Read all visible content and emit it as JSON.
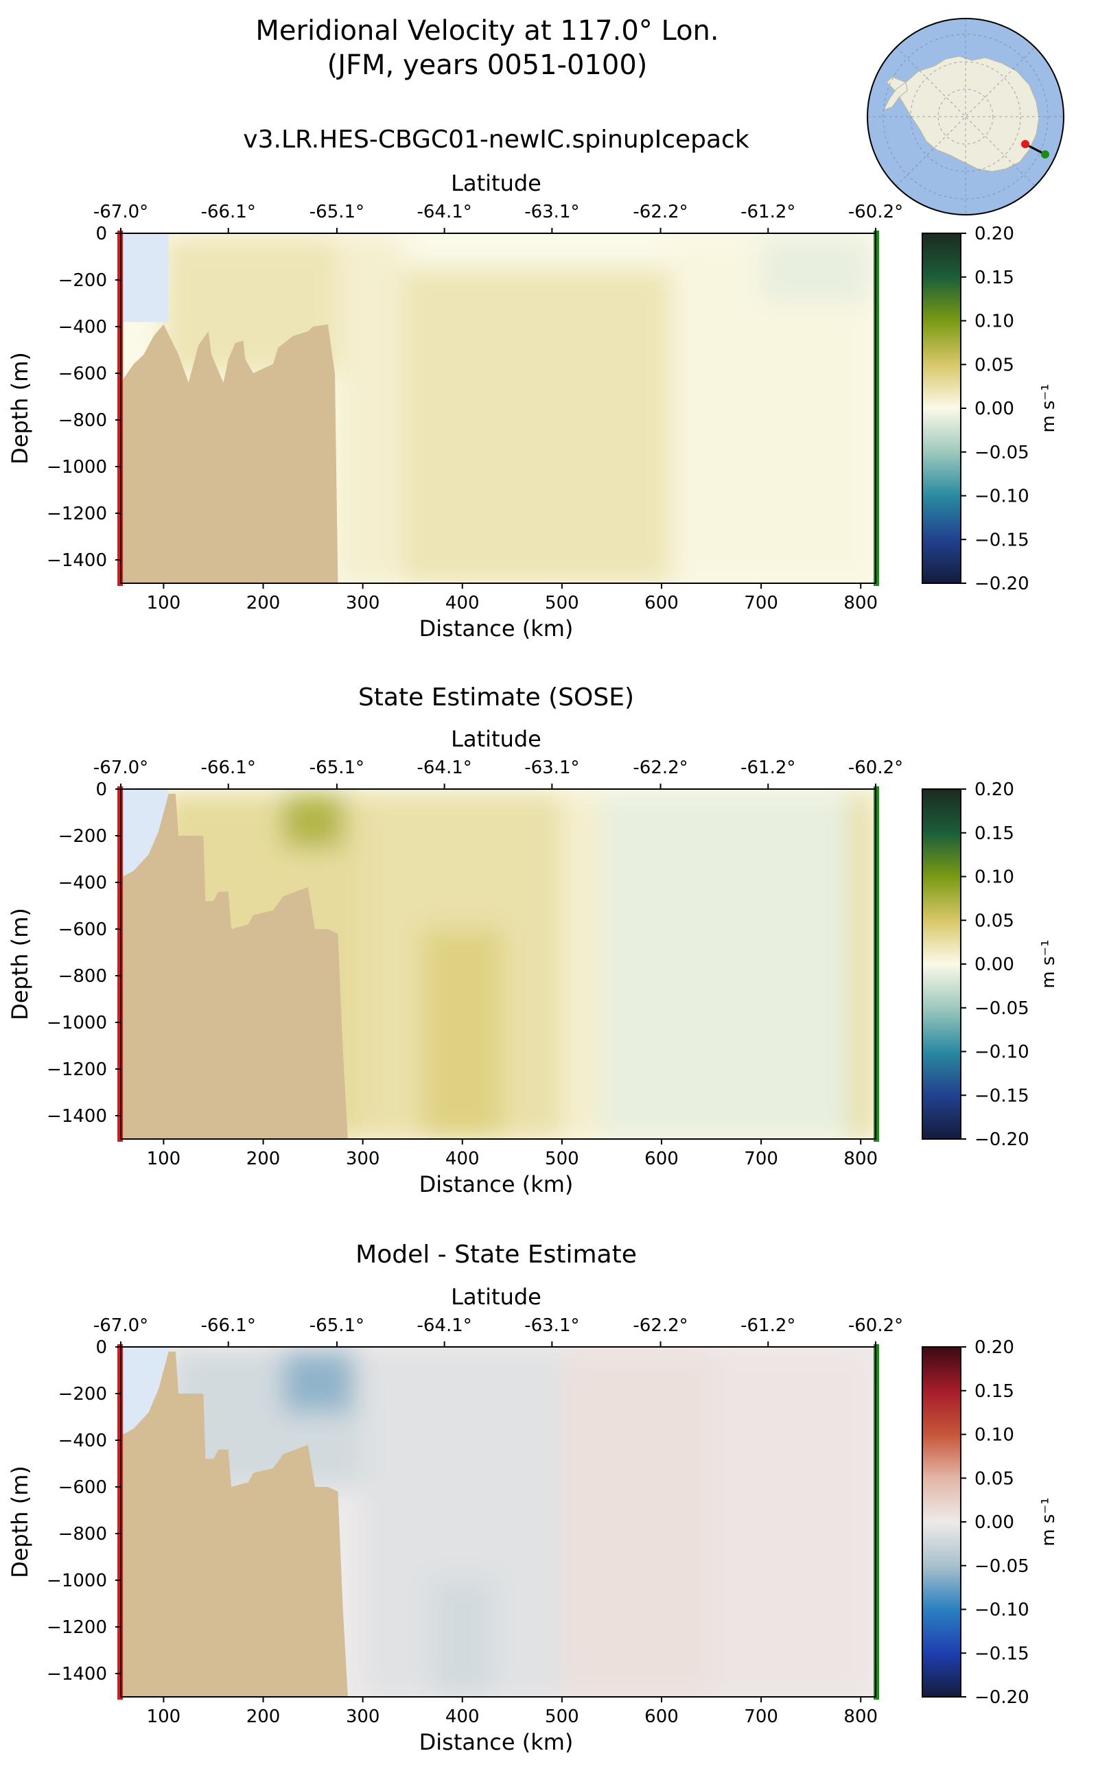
{
  "figure": {
    "title_line1": "Meridional Velocity at 117.0° Lon.",
    "title_line2": "(JFM, years 0051-0100)"
  },
  "chart_data": [
    {
      "type": "heatmap",
      "title": "v3.LR.HES-CBGC01-newIC.spinupIcepack",
      "xlabel": "Distance (km)",
      "ylabel": "Depth (m)",
      "top_xlabel": "Latitude",
      "xlim": [
        57,
        815
      ],
      "ylim": [
        -1500,
        0
      ],
      "xticks": [
        "100",
        "200",
        "300",
        "400",
        "500",
        "600",
        "700",
        "800"
      ],
      "yticks": [
        "0",
        "−200",
        "−400",
        "−600",
        "−800",
        "−1000",
        "−1200",
        "−1400"
      ],
      "lat_ticks": [
        "-67.0°",
        "-66.1°",
        "-65.1°",
        "-64.1°",
        "-63.1°",
        "-62.2°",
        "-61.2°",
        "-60.2°"
      ],
      "lat_tick_distance_km": [
        57,
        165,
        274,
        382,
        490,
        599,
        707,
        815
      ],
      "colormap": "diverging-green-yellow-blue",
      "colorbar": {
        "label": "m s⁻¹",
        "ticks": [
          "0.20",
          "0.15",
          "0.10",
          "0.05",
          "0.00",
          "−0.05",
          "−0.10",
          "−0.15",
          "−0.20"
        ],
        "range": [
          -0.2,
          0.2
        ]
      },
      "bathymetry": [
        [
          57,
          -640
        ],
        [
          70,
          -560
        ],
        [
          80,
          -520
        ],
        [
          90,
          -440
        ],
        [
          100,
          -390
        ],
        [
          115,
          -520
        ],
        [
          125,
          -640
        ],
        [
          135,
          -480
        ],
        [
          145,
          -420
        ],
        [
          148,
          -520
        ],
        [
          160,
          -640
        ],
        [
          165,
          -540
        ],
        [
          172,
          -470
        ],
        [
          180,
          -460
        ],
        [
          182,
          -540
        ],
        [
          190,
          -600
        ],
        [
          210,
          -560
        ],
        [
          215,
          -490
        ],
        [
          230,
          -440
        ],
        [
          245,
          -420
        ],
        [
          250,
          -400
        ],
        [
          265,
          -390
        ],
        [
          272,
          -600
        ],
        [
          275,
          -1500
        ]
      ],
      "velocity_regions": [
        {
          "x": [
            60,
            105
          ],
          "depth": [
            -20,
            -380
          ],
          "value": 0.0
        },
        {
          "x": [
            100,
            275
          ],
          "depth": [
            -20,
            -600
          ],
          "value": 0.02
        },
        {
          "x": [
            275,
            340
          ],
          "depth": [
            -20,
            -1500
          ],
          "value": 0.01
        },
        {
          "x": [
            340,
            610
          ],
          "depth": [
            -150,
            -1500
          ],
          "value": 0.02
        },
        {
          "x": [
            610,
            810
          ],
          "depth": [
            -20,
            -1500
          ],
          "value": 0.003
        },
        {
          "x": [
            700,
            810
          ],
          "depth": [
            -20,
            -300
          ],
          "value": -0.01
        }
      ]
    },
    {
      "type": "heatmap",
      "title": "State Estimate (SOSE)",
      "xlabel": "Distance (km)",
      "ylabel": "Depth (m)",
      "top_xlabel": "Latitude",
      "xlim": [
        57,
        815
      ],
      "ylim": [
        -1500,
        0
      ],
      "xticks": [
        "100",
        "200",
        "300",
        "400",
        "500",
        "600",
        "700",
        "800"
      ],
      "yticks": [
        "0",
        "−200",
        "−400",
        "−600",
        "−800",
        "−1000",
        "−1200",
        "−1400"
      ],
      "lat_ticks": [
        "-67.0°",
        "-66.1°",
        "-65.1°",
        "-64.1°",
        "-63.1°",
        "-62.2°",
        "-61.2°",
        "-60.2°"
      ],
      "lat_tick_distance_km": [
        57,
        165,
        274,
        382,
        490,
        599,
        707,
        815
      ],
      "colormap": "diverging-green-yellow-blue",
      "colorbar": {
        "label": "m s⁻¹",
        "ticks": [
          "0.20",
          "0.15",
          "0.10",
          "0.05",
          "0.00",
          "−0.05",
          "−0.10",
          "−0.15",
          "−0.20"
        ],
        "range": [
          -0.2,
          0.2
        ]
      },
      "bathymetry": [
        [
          57,
          -380
        ],
        [
          70,
          -350
        ],
        [
          85,
          -280
        ],
        [
          95,
          -180
        ],
        [
          105,
          -20
        ],
        [
          112,
          -20
        ],
        [
          115,
          -200
        ],
        [
          130,
          -200
        ],
        [
          140,
          -200
        ],
        [
          142,
          -480
        ],
        [
          150,
          -480
        ],
        [
          155,
          -440
        ],
        [
          165,
          -440
        ],
        [
          168,
          -600
        ],
        [
          185,
          -580
        ],
        [
          190,
          -540
        ],
        [
          210,
          -520
        ],
        [
          220,
          -460
        ],
        [
          245,
          -420
        ],
        [
          252,
          -600
        ],
        [
          265,
          -600
        ],
        [
          275,
          -620
        ],
        [
          280,
          -1120
        ],
        [
          285,
          -1500
        ]
      ],
      "velocity_regions": [
        {
          "x": [
            100,
            300
          ],
          "depth": [
            -20,
            -1500
          ],
          "value": 0.03
        },
        {
          "x": [
            220,
            280
          ],
          "depth": [
            -20,
            -250
          ],
          "value": 0.07
        },
        {
          "x": [
            300,
            500
          ],
          "depth": [
            -20,
            -1500
          ],
          "value": 0.025
        },
        {
          "x": [
            360,
            440
          ],
          "depth": [
            -600,
            -1500
          ],
          "value": 0.04
        },
        {
          "x": [
            500,
            540
          ],
          "depth": [
            -20,
            -1500
          ],
          "value": 0.01
        },
        {
          "x": [
            540,
            800
          ],
          "depth": [
            -20,
            -1500
          ],
          "value": -0.01
        },
        {
          "x": [
            790,
            812
          ],
          "depth": [
            -20,
            -1500
          ],
          "value": 0.03
        }
      ]
    },
    {
      "type": "heatmap",
      "title": "Model - State Estimate",
      "xlabel": "Distance (km)",
      "ylabel": "Depth (m)",
      "top_xlabel": "Latitude",
      "xlim": [
        57,
        815
      ],
      "ylim": [
        -1500,
        0
      ],
      "xticks": [
        "100",
        "200",
        "300",
        "400",
        "500",
        "600",
        "700",
        "800"
      ],
      "yticks": [
        "0",
        "−200",
        "−400",
        "−600",
        "−800",
        "−1000",
        "−1200",
        "−1400"
      ],
      "lat_ticks": [
        "-67.0°",
        "-66.1°",
        "-65.1°",
        "-64.1°",
        "-63.1°",
        "-62.2°",
        "-61.2°",
        "-60.2°"
      ],
      "lat_tick_distance_km": [
        57,
        165,
        274,
        382,
        490,
        599,
        707,
        815
      ],
      "colormap": "diverging-red-white-blue",
      "colorbar": {
        "label": "m s⁻¹",
        "ticks": [
          "0.20",
          "0.15",
          "0.10",
          "0.05",
          "0.00",
          "−0.05",
          "−0.10",
          "−0.15",
          "−0.20"
        ],
        "range": [
          -0.2,
          0.2
        ]
      },
      "bathymetry": [
        [
          57,
          -380
        ],
        [
          70,
          -350
        ],
        [
          85,
          -280
        ],
        [
          95,
          -180
        ],
        [
          105,
          -20
        ],
        [
          112,
          -20
        ],
        [
          115,
          -200
        ],
        [
          130,
          -200
        ],
        [
          140,
          -200
        ],
        [
          142,
          -480
        ],
        [
          150,
          -480
        ],
        [
          155,
          -440
        ],
        [
          165,
          -440
        ],
        [
          168,
          -600
        ],
        [
          185,
          -580
        ],
        [
          190,
          -540
        ],
        [
          210,
          -520
        ],
        [
          220,
          -460
        ],
        [
          245,
          -420
        ],
        [
          252,
          -600
        ],
        [
          265,
          -600
        ],
        [
          275,
          -620
        ],
        [
          280,
          -1120
        ],
        [
          285,
          -1500
        ]
      ],
      "velocity_regions": [
        {
          "x": [
            110,
            300
          ],
          "depth": [
            -20,
            -600
          ],
          "value": -0.02
        },
        {
          "x": [
            220,
            290
          ],
          "depth": [
            -20,
            -280
          ],
          "value": -0.06
        },
        {
          "x": [
            300,
            500
          ],
          "depth": [
            -20,
            -1500
          ],
          "value": -0.01
        },
        {
          "x": [
            370,
            430
          ],
          "depth": [
            -1000,
            -1500
          ],
          "value": -0.02
        },
        {
          "x": [
            500,
            650
          ],
          "depth": [
            -20,
            -1500
          ],
          "value": 0.01
        },
        {
          "x": [
            650,
            810
          ],
          "depth": [
            -20,
            -1500
          ],
          "value": 0.005
        }
      ]
    }
  ],
  "locator_map": {
    "description_icon": "antarctica-locator-icon",
    "ocean_color": "#9dbde6",
    "land_color": "#eeeddd",
    "start_marker_color": "#e31a1c",
    "end_marker_color": "#1a8a1a"
  }
}
